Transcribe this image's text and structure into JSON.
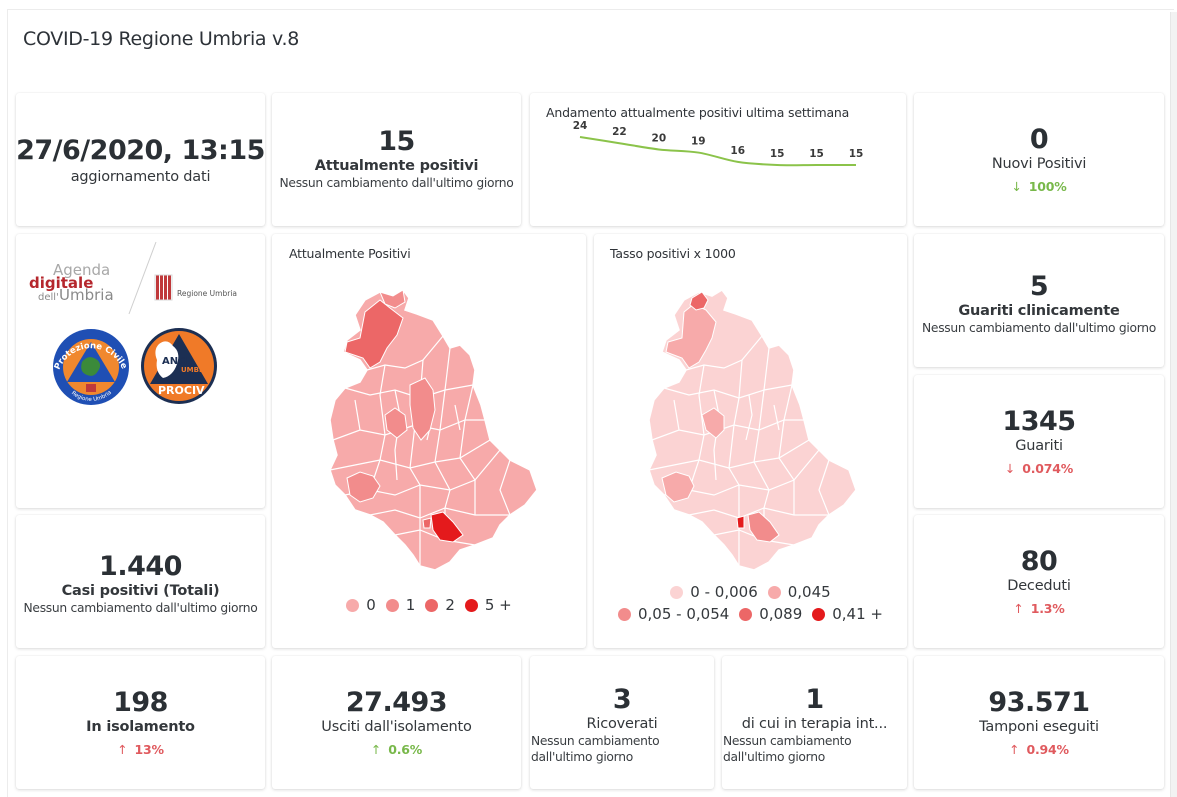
{
  "page": {
    "title": "COVID-19 Regione Umbria v.8"
  },
  "update_card": {
    "value": "27/6/2020, 13:15",
    "label": "aggiornamento dati"
  },
  "attualmente_positivi": {
    "value": "15",
    "label": "Attualmente positivi",
    "sub": "Nessun cambiamento dall'ultimo giorno"
  },
  "trend_card": {
    "title": "Andamento attualmente positivi ultima settimana",
    "line_color": "#8bc34a"
  },
  "chart_data": {
    "type": "line",
    "title": "Andamento attualmente positivi ultima settimana",
    "x": [
      1,
      2,
      3,
      4,
      5,
      6,
      7,
      8
    ],
    "values": [
      24,
      22,
      20,
      19,
      16,
      15,
      15,
      15
    ],
    "data_labels": [
      "24",
      "22",
      "20",
      "19",
      "16",
      "15",
      "15",
      "15"
    ],
    "xlabel": "",
    "ylabel": "",
    "grid": false,
    "legend": "none"
  },
  "nuovi_positivi": {
    "value": "0",
    "label": "Nuovi Positivi",
    "delta_arrow": "↓",
    "delta": "100%",
    "delta_color": "green"
  },
  "logos": {
    "agenda_line1": "Agenda",
    "agenda_line2": "digitale",
    "agenda_line3a": "dell'",
    "agenda_line3b": "Umbria",
    "regione_label": "Regione Umbria",
    "protezione_top": "Protezione Civile",
    "protezione_bottom": "Regione Umbria",
    "anci_line1": "ANCI",
    "anci_line2": "UMBRIA",
    "anci_line3": "PROCIV"
  },
  "map_positivi": {
    "title": "Attualmente Positivi",
    "legend": [
      {
        "label": "0",
        "color": "#f7aaaa"
      },
      {
        "label": "1",
        "color": "#f28c8c"
      },
      {
        "label": "2",
        "color": "#ec6767"
      },
      {
        "label": "5 +",
        "color": "#e41a1c"
      }
    ]
  },
  "map_tasso": {
    "title": "Tasso positivi x 1000",
    "legend": [
      {
        "label": "0 - 0,006",
        "color": "#fbd3d3"
      },
      {
        "label": "0,045",
        "color": "#f7aaaa"
      },
      {
        "label": "0,05 - 0,054",
        "color": "#f28c8c"
      },
      {
        "label": "0,089",
        "color": "#ec6767"
      },
      {
        "label": "0,41 +",
        "color": "#e41a1c"
      }
    ]
  },
  "guariti_clinicamente": {
    "value": "5",
    "label": "Guariti clinicamente",
    "sub": "Nessun cambiamento dall'ultimo giorno"
  },
  "guariti": {
    "value": "1345",
    "label": "Guariti",
    "delta_arrow": "↓",
    "delta": "0.074%",
    "delta_color": "red"
  },
  "casi_totali": {
    "value": "1.440",
    "label": "Casi positivi (Totali)",
    "sub": "Nessun cambiamento dall'ultimo giorno"
  },
  "deceduti": {
    "value": "80",
    "label": "Deceduti",
    "delta_arrow": "↑",
    "delta": "1.3%",
    "delta_color": "red"
  },
  "isolamento": {
    "value": "198",
    "label": "In isolamento",
    "delta_arrow": "↑",
    "delta": "13%",
    "delta_color": "red"
  },
  "usciti": {
    "value": "27.493",
    "label": "Usciti dall'isolamento",
    "delta_arrow": "↑",
    "delta": "0.6%",
    "delta_color": "green"
  },
  "ricoverati": {
    "value": "3",
    "label": "Ricoverati",
    "sub": "Nessun cambiamento dall'ultimo giorno"
  },
  "terapia_intensiva": {
    "value": "1",
    "label": "di cui in terapia int...",
    "sub": "Nessun cambiamento dall'ultimo giorno"
  },
  "tamponi": {
    "value": "93.571",
    "label": "Tamponi eseguiti",
    "delta_arrow": "↑",
    "delta": "0.94%",
    "delta_color": "red"
  }
}
